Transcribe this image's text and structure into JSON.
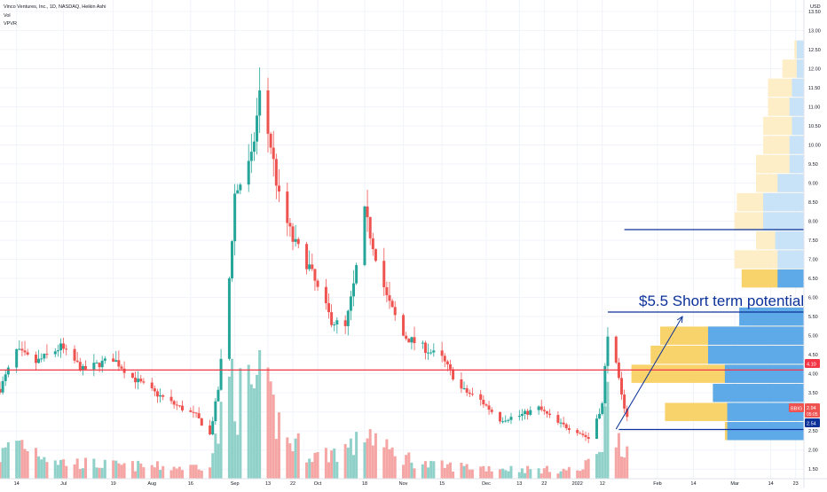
{
  "header": {
    "title": "Vinco Ventures, Inc., 1D, NASDAQ, Heikin Ashi",
    "vol_label": "Vol",
    "vpvr_label": "VPVR",
    "currency": "USD"
  },
  "annotation": {
    "text": "$5.5 Short term potential",
    "level": 5.62,
    "arrow_from": {
      "x": "2022-01-17",
      "y": 2.55
    },
    "arrow_to": {
      "x": "2022-02-10",
      "y": 5.5
    }
  },
  "badges": {
    "price_line": "4.10",
    "ticker": "BBIG",
    "last_price": "2.94",
    "countdown": "05:05",
    "low_label": "2.54"
  },
  "colors": {
    "up": "#26a69a",
    "down": "#ef5350",
    "up_volume": "#8fd1c9",
    "down_volume": "#f5a5a3",
    "vp_yellow": "#f8d26b",
    "vp_yellow_light": "#fdeec8",
    "vp_blue": "#5ea9e8",
    "vp_blue_light": "#c8e2f7",
    "resistance": "#f23645",
    "horizontal_lines": "#0c3299"
  },
  "chart_data": {
    "type": "candlestick",
    "title": "Vinco Ventures, Inc., 1D, NASDAQ, Heikin Ashi",
    "ylim": [
      1.25,
      13.8
    ],
    "y_ticks": [
      1.5,
      2.0,
      2.5,
      3.0,
      3.5,
      4.0,
      4.5,
      5.0,
      5.5,
      6.0,
      6.5,
      7.0,
      7.5,
      8.0,
      8.5,
      9.0,
      9.5,
      10.0,
      10.5,
      11.0,
      11.5,
      12.0,
      12.5,
      13.0,
      13.5
    ],
    "x_ticks": [
      {
        "label": "14",
        "date": "2021-06-14"
      },
      {
        "label": "Jul",
        "date": "2021-07-01"
      },
      {
        "label": "19",
        "date": "2021-07-19"
      },
      {
        "label": "Aug",
        "date": "2021-08-02"
      },
      {
        "label": "16",
        "date": "2021-08-16"
      },
      {
        "label": "Sep",
        "date": "2021-09-01"
      },
      {
        "label": "13",
        "date": "2021-09-13"
      },
      {
        "label": "22",
        "date": "2021-09-22"
      },
      {
        "label": "Oct",
        "date": "2021-10-01"
      },
      {
        "label": "18",
        "date": "2021-10-18"
      },
      {
        "label": "Nov",
        "date": "2021-11-01"
      },
      {
        "label": "15",
        "date": "2021-11-15"
      },
      {
        "label": "Dec",
        "date": "2021-12-01"
      },
      {
        "label": "13",
        "date": "2021-12-13"
      },
      {
        "label": "22",
        "date": "2021-12-22"
      },
      {
        "label": "2022",
        "date": "2022-01-03"
      },
      {
        "label": "12",
        "date": "2022-01-12"
      },
      {
        "label": "Feb",
        "date": "2022-02-01"
      },
      {
        "label": "14",
        "date": "2022-02-14"
      },
      {
        "label": "Mar",
        "date": "2022-03-01"
      },
      {
        "label": "14",
        "date": "2022-03-14"
      },
      {
        "label": "23",
        "date": "2022-03-23"
      }
    ],
    "x_start": "2021-06-08",
    "x_end": "2022-03-26",
    "price_path": [
      [
        "2021-06-08",
        3.6
      ],
      [
        "2021-06-14",
        4.6
      ],
      [
        "2021-06-21",
        4.3
      ],
      [
        "2021-06-30",
        4.7
      ],
      [
        "2021-07-08",
        4.1
      ],
      [
        "2021-07-19",
        4.4
      ],
      [
        "2021-07-26",
        3.9
      ],
      [
        "2021-08-03",
        3.5
      ],
      [
        "2021-08-10",
        3.2
      ],
      [
        "2021-08-18",
        2.9
      ],
      [
        "2021-08-23",
        2.4
      ],
      [
        "2021-08-26",
        3.6
      ],
      [
        "2021-08-30",
        6.5
      ],
      [
        "2021-09-01",
        8.7
      ],
      [
        "2021-09-07",
        9.6
      ],
      [
        "2021-09-10",
        11.3
      ],
      [
        "2021-09-14",
        10.0
      ],
      [
        "2021-09-17",
        8.6
      ],
      [
        "2021-09-22",
        7.5
      ],
      [
        "2021-09-28",
        6.8
      ],
      [
        "2021-10-01",
        6.2
      ],
      [
        "2021-10-06",
        5.4
      ],
      [
        "2021-10-11",
        5.2
      ],
      [
        "2021-10-14",
        6.3
      ],
      [
        "2021-10-18",
        8.2
      ],
      [
        "2021-10-21",
        7.4
      ],
      [
        "2021-10-26",
        6.0
      ],
      [
        "2021-11-01",
        5.0
      ],
      [
        "2021-11-08",
        4.7
      ],
      [
        "2021-11-15",
        4.4
      ],
      [
        "2021-11-22",
        3.6
      ],
      [
        "2021-11-29",
        3.3
      ],
      [
        "2021-12-06",
        2.8
      ],
      [
        "2021-12-13",
        2.9
      ],
      [
        "2021-12-20",
        3.1
      ],
      [
        "2021-12-27",
        2.7
      ],
      [
        "2022-01-03",
        2.5
      ],
      [
        "2022-01-07",
        2.3
      ],
      [
        "2022-01-12",
        3.2
      ],
      [
        "2022-01-14",
        5.1
      ],
      [
        "2022-01-17",
        4.2
      ],
      [
        "2022-01-19",
        3.4
      ],
      [
        "2022-01-21",
        2.9
      ]
    ],
    "volume_path": [
      [
        "2021-06-08",
        0.2
      ],
      [
        "2021-06-14",
        0.35
      ],
      [
        "2021-06-30",
        0.15
      ],
      [
        "2021-07-19",
        0.12
      ],
      [
        "2021-08-16",
        0.1
      ],
      [
        "2021-08-23",
        0.15
      ],
      [
        "2021-08-27",
        0.5
      ],
      [
        "2021-08-31",
        0.95
      ],
      [
        "2021-09-02",
        0.7
      ],
      [
        "2021-09-10",
        0.85
      ],
      [
        "2021-09-20",
        0.35
      ],
      [
        "2021-10-01",
        0.2
      ],
      [
        "2021-10-15",
        0.3
      ],
      [
        "2021-10-19",
        0.45
      ],
      [
        "2021-10-26",
        0.25
      ],
      [
        "2021-11-10",
        0.12
      ],
      [
        "2021-12-01",
        0.1
      ],
      [
        "2021-12-20",
        0.08
      ],
      [
        "2022-01-05",
        0.08
      ],
      [
        "2022-01-12",
        0.35
      ],
      [
        "2022-01-14",
        0.7
      ],
      [
        "2022-01-18",
        0.4
      ],
      [
        "2022-01-21",
        0.25
      ]
    ],
    "volume_profile": [
      {
        "low": 1.75,
        "high": 2.25,
        "up": 0.0,
        "down": 0.0
      },
      {
        "low": 2.25,
        "high": 2.75,
        "up": 0.32,
        "down": 0.33
      },
      {
        "low": 2.75,
        "high": 3.25,
        "up": 0.32,
        "down": 0.58
      },
      {
        "low": 3.25,
        "high": 3.75,
        "up": 0.38,
        "down": 0.38
      },
      {
        "low": 3.75,
        "high": 4.25,
        "up": 0.33,
        "down": 0.72
      },
      {
        "low": 4.25,
        "high": 4.75,
        "up": 0.4,
        "down": 0.64
      },
      {
        "low": 4.75,
        "high": 5.25,
        "up": 0.4,
        "down": 0.6
      },
      {
        "low": 5.25,
        "high": 5.75,
        "up": 0.27,
        "down": 0.22
      },
      {
        "low": 5.75,
        "high": 6.25,
        "up": 0.0,
        "down": 0.0
      },
      {
        "low": 6.25,
        "high": 6.75,
        "up": 0.11,
        "down": 0.26
      },
      {
        "low": 6.75,
        "high": 7.25,
        "up": 0.11,
        "down": 0.29
      },
      {
        "low": 7.25,
        "high": 7.75,
        "up": 0.12,
        "down": 0.2
      },
      {
        "low": 7.75,
        "high": 8.25,
        "up": 0.17,
        "down": 0.29
      },
      {
        "low": 8.25,
        "high": 8.75,
        "up": 0.17,
        "down": 0.28
      },
      {
        "low": 8.75,
        "high": 9.25,
        "up": 0.11,
        "down": 0.2
      },
      {
        "low": 9.25,
        "high": 9.75,
        "up": 0.06,
        "down": 0.2
      },
      {
        "low": 9.75,
        "high": 10.25,
        "up": 0.06,
        "down": 0.17
      },
      {
        "low": 10.25,
        "high": 10.75,
        "up": 0.05,
        "down": 0.17
      },
      {
        "low": 10.75,
        "high": 11.25,
        "up": 0.06,
        "down": 0.15
      },
      {
        "low": 11.25,
        "high": 11.75,
        "up": 0.05,
        "down": 0.15
      },
      {
        "low": 11.75,
        "high": 12.25,
        "up": 0.03,
        "down": 0.09
      },
      {
        "low": 12.25,
        "high": 12.75,
        "up": 0.03,
        "down": 0.04
      }
    ],
    "horizontal_levels": [
      {
        "price": 7.78,
        "from": "2022-01-20",
        "to": "2022-03-26",
        "kind": "blue"
      },
      {
        "price": 5.62,
        "from": "2022-01-14",
        "to": "2022-03-26",
        "kind": "blue"
      },
      {
        "price": 4.1,
        "from": "2021-06-08",
        "to": "2022-03-26",
        "kind": "red"
      },
      {
        "price": 2.54,
        "from": "2022-01-18",
        "to": "2022-03-26",
        "kind": "blue"
      }
    ]
  }
}
